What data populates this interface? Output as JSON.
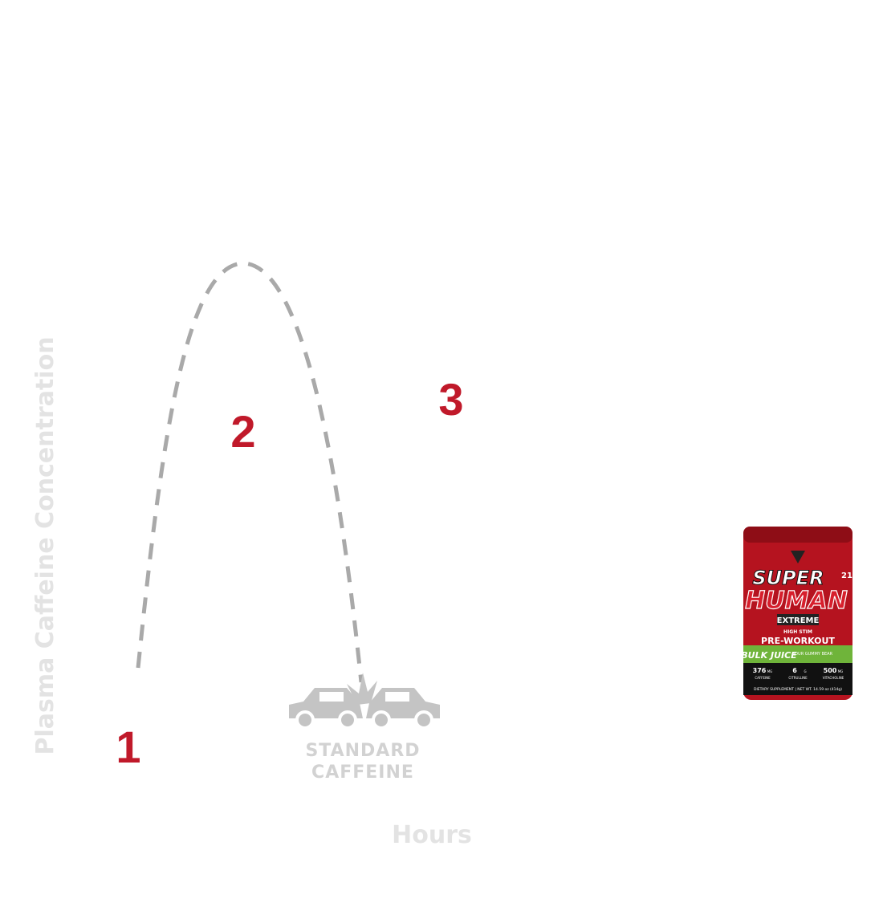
{
  "graphic": {
    "y_axis_label": "Plasma Caffeine Concentration",
    "x_axis_label": "Hours",
    "markers": [
      "1",
      "2",
      "3"
    ],
    "curve_label": [
      "STANDARD",
      "CAFFEINE"
    ],
    "product": {
      "brand_top": "SUPER",
      "brand_bottom": "HUMAN",
      "edition": "EXTREME",
      "tagline": "HIGH STIM",
      "kind": "PRE-WORKOUT",
      "sub_brand": "BULK JUICE",
      "flavor": "SOUR GUMMY BEAR",
      "servings": "21",
      "facts": [
        {
          "amount": "376",
          "unit": "MG",
          "name": "CAFFEINE"
        },
        {
          "amount": "6",
          "unit": "G",
          "name": "CITRULLINE"
        },
        {
          "amount": "500",
          "unit": "MG",
          "name": "VITACHOLINE"
        }
      ],
      "footer": "DIETARY SUPPLEMENT | NET WT. 14.59 oz (414g)"
    }
  }
}
